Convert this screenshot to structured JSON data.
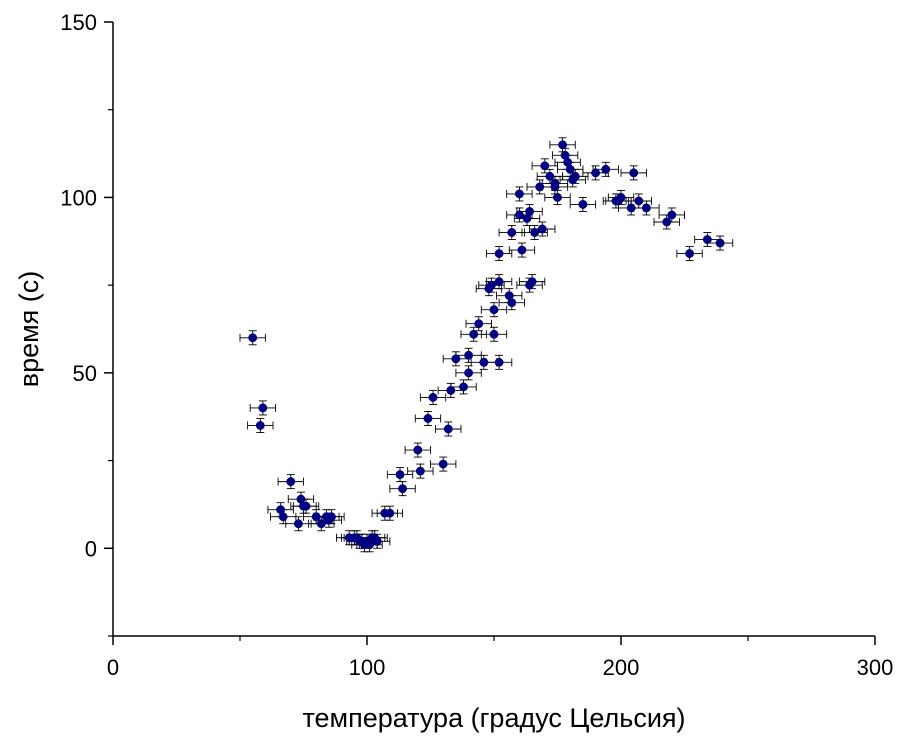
{
  "chart_data": {
    "type": "scatter",
    "xlabel": "температура (градус Цельсия)",
    "ylabel": "время (с)",
    "xlim": [
      0,
      300
    ],
    "ylim": [
      -25,
      150
    ],
    "xticks": [
      0,
      100,
      200,
      300
    ],
    "yticks": [
      0,
      50,
      100,
      150
    ],
    "xtick_labels": [
      "0",
      "100",
      "200",
      "300"
    ],
    "ytick_labels": [
      "0",
      "50",
      "100",
      "150"
    ],
    "grid": false,
    "legend": false,
    "marker_color": "#000080",
    "error_bar_color": "#000000",
    "x_error": 5,
    "y_error": 2,
    "points": [
      [
        55,
        60
      ],
      [
        58,
        35
      ],
      [
        59,
        40
      ],
      [
        66,
        11
      ],
      [
        67,
        9
      ],
      [
        70,
        19
      ],
      [
        73,
        7
      ],
      [
        74,
        14
      ],
      [
        75,
        12
      ],
      [
        76,
        12
      ],
      [
        80,
        9
      ],
      [
        82,
        7
      ],
      [
        84,
        9
      ],
      [
        85,
        8
      ],
      [
        86,
        9
      ],
      [
        93,
        3
      ],
      [
        95,
        3
      ],
      [
        96,
        3
      ],
      [
        97,
        2
      ],
      [
        98,
        2
      ],
      [
        99,
        1
      ],
      [
        100,
        2
      ],
      [
        101,
        1
      ],
      [
        102,
        3
      ],
      [
        103,
        3
      ],
      [
        104,
        2
      ],
      [
        107,
        10
      ],
      [
        109,
        10
      ],
      [
        113,
        21
      ],
      [
        114,
        17
      ],
      [
        120,
        28
      ],
      [
        121,
        22
      ],
      [
        124,
        37
      ],
      [
        126,
        43
      ],
      [
        130,
        24
      ],
      [
        132,
        34
      ],
      [
        133,
        45
      ],
      [
        135,
        54
      ],
      [
        138,
        46
      ],
      [
        140,
        55
      ],
      [
        140,
        50
      ],
      [
        142,
        61
      ],
      [
        144,
        64
      ],
      [
        146,
        53
      ],
      [
        148,
        74
      ],
      [
        149,
        75
      ],
      [
        150,
        61
      ],
      [
        150,
        68
      ],
      [
        152,
        53
      ],
      [
        152,
        76
      ],
      [
        152,
        84
      ],
      [
        156,
        72
      ],
      [
        157,
        70
      ],
      [
        157,
        90
      ],
      [
        160,
        95
      ],
      [
        160,
        101
      ],
      [
        161,
        85
      ],
      [
        163,
        94
      ],
      [
        164,
        96
      ],
      [
        164,
        75
      ],
      [
        165,
        76
      ],
      [
        166,
        90
      ],
      [
        168,
        103
      ],
      [
        169,
        91
      ],
      [
        170,
        109
      ],
      [
        172,
        106
      ],
      [
        174,
        104
      ],
      [
        174,
        103
      ],
      [
        175,
        100
      ],
      [
        177,
        115
      ],
      [
        178,
        112
      ],
      [
        179,
        110
      ],
      [
        180,
        108
      ],
      [
        181,
        105
      ],
      [
        182,
        106
      ],
      [
        185,
        98
      ],
      [
        190,
        107
      ],
      [
        194,
        108
      ],
      [
        198,
        99
      ],
      [
        199,
        99
      ],
      [
        200,
        100
      ],
      [
        204,
        97
      ],
      [
        205,
        107
      ],
      [
        207,
        99
      ],
      [
        210,
        97
      ],
      [
        218,
        93
      ],
      [
        220,
        95
      ],
      [
        227,
        84
      ],
      [
        234,
        88
      ],
      [
        239,
        87
      ]
    ]
  }
}
